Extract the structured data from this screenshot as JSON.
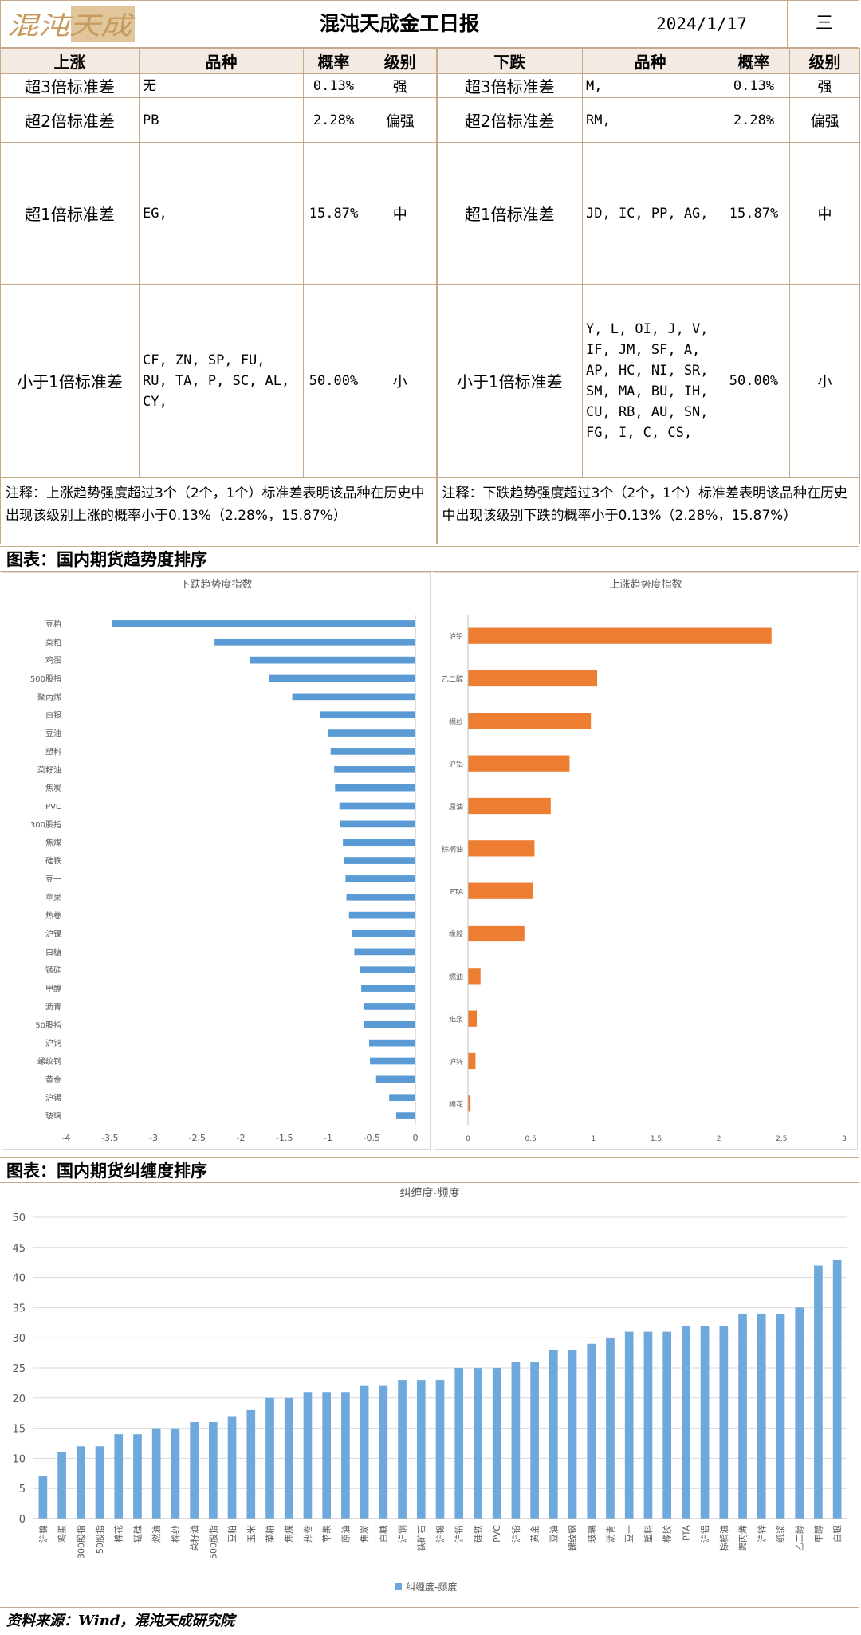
{
  "header": {
    "logo_text": "混沌天成",
    "title": "混沌天成金工日报",
    "date": "2024/1/17",
    "weekday": "三"
  },
  "table": {
    "headers_up": [
      "上涨",
      "品种",
      "概率",
      "级别"
    ],
    "headers_down": [
      "下跌",
      "品种",
      "概率",
      "级别"
    ],
    "rows": [
      {
        "level": "超3倍标准差",
        "up_items": "无",
        "up_prob": "0.13%",
        "up_grade": "强",
        "down_level": "超3倍标准差",
        "down_items": "M,",
        "down_prob": "0.13%",
        "down_grade": "强"
      },
      {
        "level": "超2倍标准差",
        "up_items": "PB",
        "up_prob": "2.28%",
        "up_grade": "偏强",
        "down_level": "超2倍标准差",
        "down_items": "RM,",
        "down_prob": "2.28%",
        "down_grade": "偏强"
      },
      {
        "level": "超1倍标准差",
        "up_items": "EG,",
        "up_prob": "15.87%",
        "up_grade": "中",
        "down_level": "超1倍标准差",
        "down_items": "JD, IC, PP, AG,",
        "down_prob": "15.87%",
        "down_grade": "中"
      },
      {
        "level": "小于1倍标准差",
        "up_items": "CF, ZN, SP, FU,\nRU, TA, P, SC, AL,\nCY,",
        "up_prob": "50.00%",
        "up_grade": "小",
        "down_level": "小于1倍标准差",
        "down_items": "Y, L, OI, J, V,\nIF, JM, SF, A,\nAP, HC, NI, SR,\nSM, MA, BU, IH,\nCU, RB, AU, SN,\nFG, I, C, CS,",
        "down_prob": "50.00%",
        "down_grade": "小"
      }
    ],
    "note_up": "注释：上涨趋势强度超过3个（2个，1个）标准差表明该品种在历史中出现该级别上涨的概率小于0.13%（2.28%，15.87%）",
    "note_down": "注释：下跌趋势强度超过3个（2个，1个）标准差表明该品种在历史中出现该级别下跌的概率小于0.13%（2.28%，15.87%）"
  },
  "section1_title": "图表：国内期货趋势度排序",
  "section2_title": "图表：国内期货纠缠度排序",
  "footer": "资料来源：Wind，混沌天成研究院",
  "colors": {
    "down_bar": "#5b9bd5",
    "up_bar": "#ed7d31",
    "freq_bar": "#6fa8dc",
    "border": "#c9a989"
  },
  "chart_data": [
    {
      "type": "bar",
      "orientation": "horizontal",
      "title": "下跌趋势度指数",
      "categories": [
        "豆粕",
        "菜粕",
        "鸡蛋",
        "500股指",
        "聚丙烯",
        "白银",
        "豆油",
        "塑料",
        "菜籽油",
        "焦炭",
        "PVC",
        "300股指",
        "焦煤",
        "硅铁",
        "豆一",
        "苹果",
        "热卷",
        "沪镍",
        "白糖",
        "锰硅",
        "甲醇",
        "沥青",
        "50股指",
        "沪铜",
        "螺纹钢",
        "黄金",
        "沪锡",
        "玻璃"
      ],
      "values": [
        -3.47,
        -2.3,
        -1.9,
        -1.68,
        -1.41,
        -1.09,
        -1.0,
        -0.97,
        -0.93,
        -0.92,
        -0.87,
        -0.86,
        -0.83,
        -0.82,
        -0.8,
        -0.79,
        -0.76,
        -0.73,
        -0.7,
        -0.63,
        -0.62,
        -0.59,
        -0.59,
        -0.53,
        -0.52,
        -0.45,
        -0.3,
        -0.22
      ],
      "xlim": [
        -4,
        0
      ],
      "xticks": [
        "-4",
        "-3.5",
        "-3",
        "-2.5",
        "-2",
        "-1.5",
        "-1",
        "-0.5",
        "0"
      ]
    },
    {
      "type": "bar",
      "orientation": "horizontal",
      "title": "上涨趋势度指数",
      "categories": [
        "沪铅",
        "乙二醇",
        "棉纱",
        "沪铝",
        "原油",
        "棕榈油",
        "PTA",
        "橡胶",
        "燃油",
        "纸浆",
        "沪锌",
        "棉花"
      ],
      "values": [
        2.42,
        1.03,
        0.98,
        0.81,
        0.66,
        0.53,
        0.52,
        0.45,
        0.1,
        0.07,
        0.06,
        0.02
      ],
      "xlim": [
        0,
        3
      ],
      "xticks": [
        "0",
        "0.5",
        "1",
        "1.5",
        "2",
        "2.5",
        "3"
      ]
    },
    {
      "type": "bar",
      "title": "纠缠度-频度",
      "series": [
        {
          "name": "纠缠度-频度",
          "values": [
            7,
            11,
            12,
            12,
            14,
            14,
            15,
            15,
            16,
            16,
            17,
            18,
            20,
            20,
            21,
            21,
            21,
            22,
            22,
            23,
            23,
            23,
            25,
            25,
            25,
            26,
            26,
            28,
            28,
            29,
            30,
            31,
            31,
            31,
            32,
            32,
            32,
            34,
            34,
            34,
            35,
            42,
            43
          ]
        }
      ],
      "categories": [
        "沪镍",
        "鸡蛋",
        "300股指",
        "50股指",
        "棉花",
        "锰硅",
        "燃油",
        "棉纱",
        "菜籽油",
        "500股指",
        "豆粕",
        "玉米",
        "菜粕",
        "焦煤",
        "热卷",
        "苹果",
        "原油",
        "焦炭",
        "白糖",
        "沪铜",
        "铁矿石",
        "沪锡",
        "沪铅",
        "硅铁",
        "PVC",
        "沪铅",
        "黄金",
        "豆油",
        "螺纹钢",
        "玻璃",
        "沥青",
        "豆一",
        "塑料",
        "橡胶",
        "PTA",
        "沪铝",
        "棕榈油",
        "聚丙烯",
        "沪锌",
        "纸浆",
        "乙二醇",
        "甲醇",
        "白银"
      ],
      "ylim": [
        0,
        50
      ],
      "yticks": [
        "0",
        "5",
        "10",
        "15",
        "20",
        "25",
        "30",
        "35",
        "40",
        "45",
        "50"
      ],
      "legend": "bottom"
    }
  ]
}
